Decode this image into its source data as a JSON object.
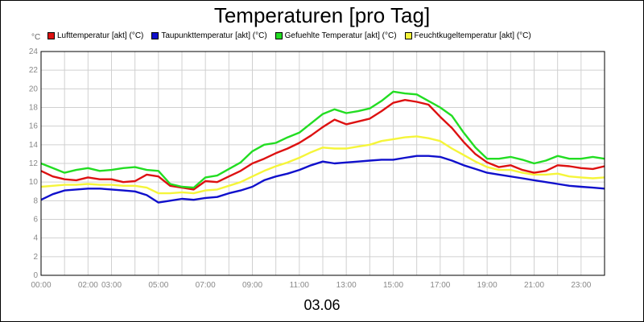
{
  "title": "Temperaturen [pro Tag]",
  "unit": "°C",
  "date": "03.06",
  "legend": [
    {
      "label": "Lufttemperatur [akt] (°C)",
      "color": "#dd1111"
    },
    {
      "label": "Taupunkttemperatur [akt] (°C)",
      "color": "#1010cc"
    },
    {
      "label": "Gefuehlte Temperatur [akt] (°C)",
      "color": "#22dd22"
    },
    {
      "label": "Feuchtkugeltemperatur [akt] (°C)",
      "color": "#f5f53a"
    }
  ],
  "chart_data": {
    "type": "line",
    "title": "Temperaturen [pro Tag]",
    "xlabel": "03.06",
    "ylabel": "°C",
    "xlim": [
      0,
      24
    ],
    "ylim": [
      0,
      24
    ],
    "y_ticks": [
      "0",
      "2",
      "4",
      "6",
      "8",
      "10",
      "12",
      "14",
      "16",
      "18",
      "20",
      "22",
      "24"
    ],
    "x_tick_labels": [
      "00:00",
      "02:00",
      "03:00",
      "05:00",
      "07:00",
      "09:00",
      "11:00",
      "13:00",
      "15:00",
      "17:00",
      "19:00",
      "21:00",
      "23:00"
    ],
    "x_tick_positions": [
      0,
      2,
      3,
      5,
      7,
      9,
      11,
      13,
      15,
      17,
      19,
      21,
      23
    ],
    "grid": true,
    "legend_position": "top",
    "series": [
      {
        "name": "Lufttemperatur [akt] (°C)",
        "color": "#dd1111",
        "x": [
          0,
          0.5,
          1,
          1.5,
          2,
          2.5,
          3,
          3.5,
          4,
          4.5,
          5,
          5.5,
          6,
          6.5,
          7,
          7.5,
          8,
          8.5,
          9,
          9.5,
          10,
          10.5,
          11,
          11.5,
          12,
          12.5,
          13,
          13.5,
          14,
          14.5,
          15,
          15.5,
          16,
          16.5,
          17,
          17.5,
          18,
          18.5,
          19,
          19.5,
          20,
          20.5,
          21,
          21.5,
          22,
          22.5,
          23,
          23.5,
          24
        ],
        "y": [
          11.2,
          10.6,
          10.3,
          10.2,
          10.5,
          10.3,
          10.3,
          10.0,
          10.1,
          10.8,
          10.6,
          9.6,
          9.4,
          9.2,
          10.1,
          10.0,
          10.6,
          11.2,
          12.0,
          12.5,
          13.1,
          13.6,
          14.2,
          15.0,
          15.9,
          16.7,
          16.2,
          16.5,
          16.8,
          17.6,
          18.5,
          18.8,
          18.6,
          18.3,
          17.0,
          15.8,
          14.3,
          13.0,
          12.1,
          11.6,
          11.8,
          11.3,
          11.0,
          11.2,
          11.8,
          11.7,
          11.5,
          11.4,
          11.7
        ]
      },
      {
        "name": "Taupunkttemperatur [akt] (°C)",
        "color": "#1010cc",
        "x": [
          0,
          0.5,
          1,
          1.5,
          2,
          2.5,
          3,
          3.5,
          4,
          4.5,
          5,
          5.5,
          6,
          6.5,
          7,
          7.5,
          8,
          8.5,
          9,
          9.5,
          10,
          10.5,
          11,
          11.5,
          12,
          12.5,
          13,
          13.5,
          14,
          14.5,
          15,
          15.5,
          16,
          16.5,
          17,
          17.5,
          18,
          18.5,
          19,
          19.5,
          20,
          20.5,
          21,
          21.5,
          22,
          22.5,
          23,
          23.5,
          24
        ],
        "y": [
          8.1,
          8.7,
          9.1,
          9.2,
          9.3,
          9.3,
          9.2,
          9.1,
          9.0,
          8.6,
          7.8,
          8.0,
          8.2,
          8.1,
          8.3,
          8.4,
          8.8,
          9.1,
          9.5,
          10.2,
          10.6,
          10.9,
          11.3,
          11.8,
          12.2,
          12.0,
          12.1,
          12.2,
          12.3,
          12.4,
          12.4,
          12.6,
          12.8,
          12.8,
          12.7,
          12.3,
          11.8,
          11.4,
          11.0,
          10.8,
          10.6,
          10.4,
          10.2,
          10.0,
          9.8,
          9.6,
          9.5,
          9.4,
          9.3
        ]
      },
      {
        "name": "Gefuehlte Temperatur [akt] (°C)",
        "color": "#22dd22",
        "x": [
          0,
          0.5,
          1,
          1.5,
          2,
          2.5,
          3,
          3.5,
          4,
          4.5,
          5,
          5.5,
          6,
          6.5,
          7,
          7.5,
          8,
          8.5,
          9,
          9.5,
          10,
          10.5,
          11,
          11.5,
          12,
          12.5,
          13,
          13.5,
          14,
          14.5,
          15,
          15.5,
          16,
          16.5,
          17,
          17.5,
          18,
          18.5,
          19,
          19.5,
          20,
          20.5,
          21,
          21.5,
          22,
          22.5,
          23,
          23.5,
          24
        ],
        "y": [
          12.0,
          11.5,
          11.0,
          11.3,
          11.5,
          11.2,
          11.3,
          11.5,
          11.6,
          11.3,
          11.2,
          9.8,
          9.5,
          9.4,
          10.5,
          10.7,
          11.4,
          12.1,
          13.3,
          14.0,
          14.2,
          14.8,
          15.3,
          16.3,
          17.3,
          17.8,
          17.4,
          17.6,
          17.9,
          18.7,
          19.7,
          19.5,
          19.4,
          18.7,
          18.0,
          17.1,
          15.3,
          13.7,
          12.5,
          12.5,
          12.7,
          12.4,
          12.0,
          12.3,
          12.8,
          12.5,
          12.5,
          12.7,
          12.5
        ]
      },
      {
        "name": "Feuchtkugeltemperatur [akt] (°C)",
        "color": "#f5f53a",
        "x": [
          0,
          0.5,
          1,
          1.5,
          2,
          2.5,
          3,
          3.5,
          4,
          4.5,
          5,
          5.5,
          6,
          6.5,
          7,
          7.5,
          8,
          8.5,
          9,
          9.5,
          10,
          10.5,
          11,
          11.5,
          12,
          12.5,
          13,
          13.5,
          14,
          14.5,
          15,
          15.5,
          16,
          16.5,
          17,
          17.5,
          18,
          18.5,
          19,
          19.5,
          20,
          20.5,
          21,
          21.5,
          22,
          22.5,
          23,
          23.5,
          24
        ],
        "y": [
          9.5,
          9.6,
          9.7,
          9.7,
          9.8,
          9.7,
          9.7,
          9.6,
          9.6,
          9.4,
          8.8,
          8.8,
          8.9,
          8.8,
          9.1,
          9.2,
          9.6,
          10.0,
          10.6,
          11.2,
          11.7,
          12.1,
          12.6,
          13.2,
          13.7,
          13.6,
          13.6,
          13.8,
          14.0,
          14.4,
          14.6,
          14.8,
          14.9,
          14.7,
          14.4,
          13.6,
          12.9,
          12.2,
          11.6,
          11.3,
          11.3,
          11.0,
          10.8,
          10.8,
          10.9,
          10.6,
          10.5,
          10.4,
          10.5
        ]
      }
    ]
  }
}
